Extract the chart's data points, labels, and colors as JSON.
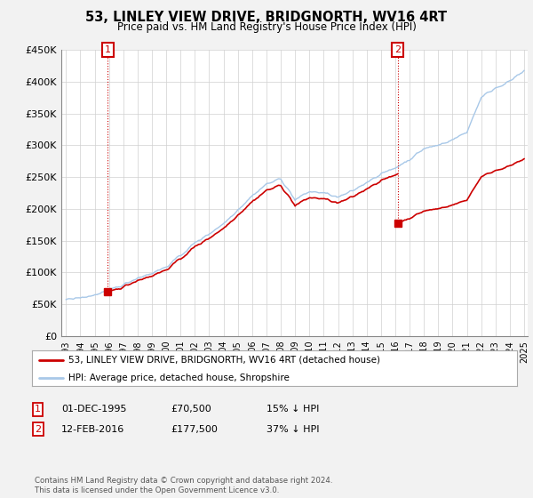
{
  "title": "53, LINLEY VIEW DRIVE, BRIDGNORTH, WV16 4RT",
  "subtitle": "Price paid vs. HM Land Registry's House Price Index (HPI)",
  "ylim": [
    0,
    450000
  ],
  "yticks": [
    0,
    50000,
    100000,
    150000,
    200000,
    250000,
    300000,
    350000,
    400000,
    450000
  ],
  "ytick_labels": [
    "£0",
    "£50K",
    "£100K",
    "£150K",
    "£200K",
    "£250K",
    "£300K",
    "£350K",
    "£400K",
    "£450K"
  ],
  "hpi_color": "#a8c8e8",
  "price_color": "#cc0000",
  "background_color": "#f2f2f2",
  "plot_bg_color": "#ffffff",
  "legend_label_red": "53, LINLEY VIEW DRIVE, BRIDGNORTH, WV16 4RT (detached house)",
  "legend_label_blue": "HPI: Average price, detached house, Shropshire",
  "copyright": "Contains HM Land Registry data © Crown copyright and database right 2024.\nThis data is licensed under the Open Government Licence v3.0.",
  "sale1_month": 35,
  "sale1_price": 70500,
  "sale2_month": 278,
  "sale2_price": 177500,
  "x_start_year": 1993,
  "n_months": 385
}
